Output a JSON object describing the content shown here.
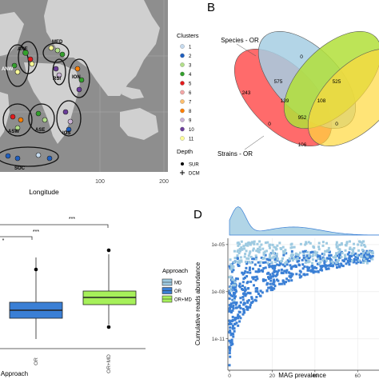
{
  "panel_labels": {
    "b": "B",
    "d": "D"
  },
  "map": {
    "x_axis_title": "Longitude",
    "x_ticks": [
      "100",
      "200"
    ],
    "region_labels": [
      "MED",
      "ANE",
      "ANW",
      "RSI",
      "ION",
      "ASW",
      "ASE",
      "IOS",
      "SOC"
    ],
    "clusters_legend": {
      "title": "Clusters",
      "items": [
        {
          "label": "1",
          "color": "#c6dbef"
        },
        {
          "label": "2",
          "color": "#1f5fbf"
        },
        {
          "label": "3",
          "color": "#b2df8a"
        },
        {
          "label": "4",
          "color": "#33a02c"
        },
        {
          "label": "5",
          "color": "#e31a1c"
        },
        {
          "label": "6",
          "color": "#f3a6a6"
        },
        {
          "label": "7",
          "color": "#fdbf6f"
        },
        {
          "label": "8",
          "color": "#ff7f00"
        },
        {
          "label": "9",
          "color": "#cab2d6"
        },
        {
          "label": "10",
          "color": "#6a3d9a"
        },
        {
          "label": "11",
          "color": "#ffff99"
        }
      ]
    },
    "depth_legend": {
      "title": "Depth",
      "items": [
        {
          "label": "SUR",
          "shape": "circle"
        },
        {
          "label": "DCM",
          "shape": "plus"
        }
      ]
    }
  },
  "venn": {
    "sets": [
      {
        "label": "Species - OR",
        "color": "#a6cee3"
      },
      {
        "label": "Strains - OR",
        "color": "#ff6b6b"
      },
      {
        "label": "",
        "color": "#b2df3a"
      },
      {
        "label": "",
        "color": "#ffd93d"
      }
    ],
    "region_values": [
      "0",
      "575",
      "525",
      "243",
      "139",
      "108",
      "0",
      "952",
      "0",
      "106"
    ]
  },
  "boxplot": {
    "legend_title": "Approach",
    "legend_items": [
      {
        "label": "MD",
        "color": "#9ecae1"
      },
      {
        "label": "OR",
        "color": "#3a7fd5"
      },
      {
        "label": "OR+MD",
        "color": "#a6f05a"
      }
    ],
    "x_axis_title": "Approach",
    "x_ticks": [
      "OR",
      "OR+MD"
    ],
    "significance": [
      "***",
      "***",
      "*"
    ]
  },
  "chart_data": {
    "type": "scatter",
    "xlabel": "MAG prevalence",
    "ylabel": "Cumulative reads abundance",
    "x_ticks": [
      "0",
      "20",
      "40",
      "60"
    ],
    "y_ticks": [
      "1e-05",
      "1e-08",
      "1e-11"
    ],
    "xlim": [
      0,
      70
    ],
    "y_log10_range": [
      -13,
      -4.6
    ],
    "series": [
      {
        "name": "MD",
        "color": "#9ecae1"
      },
      {
        "name": "OR",
        "color": "#3a7fd5"
      }
    ]
  }
}
